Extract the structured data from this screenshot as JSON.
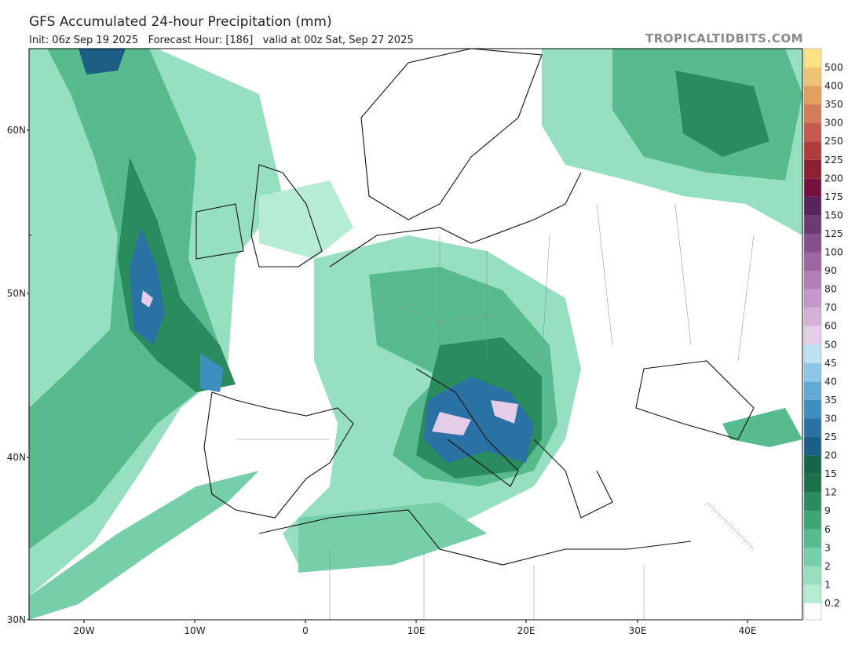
{
  "header": {
    "title": "GFS Accumulated 24-hour Precipitation (mm)",
    "subtitle": "Init: 06z Sep 19 2025   Forecast Hour: [186]   valid at 00z Sat, Sep 27 2025",
    "watermark": "TROPICALTIDBITS.COM"
  },
  "latitude_labels": [
    "60N",
    "50N",
    "40N",
    "30N"
  ],
  "longitude_labels": [
    "20W",
    "10W",
    "0",
    "10E",
    "20E",
    "30E",
    "40E"
  ],
  "colorbar": {
    "labels": [
      "0.2",
      "1",
      "2",
      "3",
      "6",
      "9",
      "12",
      "15",
      "20",
      "25",
      "30",
      "35",
      "40",
      "45",
      "50",
      "60",
      "70",
      "80",
      "90",
      "100",
      "125",
      "150",
      "175",
      "200",
      "225",
      "250",
      "300",
      "350",
      "400",
      "500"
    ],
    "colors": [
      "#ffffff",
      "#b5ecd3",
      "#96dfc0",
      "#76cfa8",
      "#57bb8e",
      "#3ea574",
      "#2a8c5e",
      "#1a714a",
      "#156747",
      "#1d5e84",
      "#2a72a3",
      "#3f8ec0",
      "#63a9d6",
      "#8ec6e6",
      "#bde0f0",
      "#e4cde6",
      "#d4b2d8",
      "#c398c8",
      "#b07fb6",
      "#9b66a2",
      "#85508c",
      "#6c3a74",
      "#59245c",
      "#75113f",
      "#8e2036",
      "#ad3a3d",
      "#c55a4e",
      "#d47c56",
      "#e0a05e",
      "#eec474",
      "#f9e383"
    ]
  }
}
